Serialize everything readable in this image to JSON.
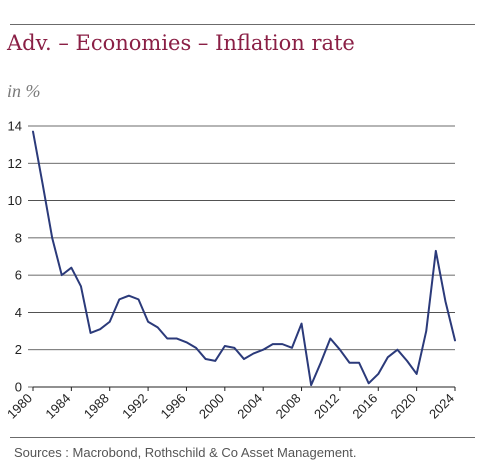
{
  "header": {
    "title": "Adv. – Economies – Inflation rate",
    "subtitle": "in %"
  },
  "footer": {
    "source": "Sources : Macrobond, Rothschild & Co Asset Management."
  },
  "colors": {
    "title": "#8a1f45",
    "line": "#2b3a7a",
    "grid": "#3a3a3a"
  },
  "chart_data": {
    "type": "line",
    "title": "Adv. – Economies – Inflation rate",
    "ylabel": "in %",
    "xlabel": "",
    "ylim": [
      0,
      14
    ],
    "xlim": [
      1980,
      2024
    ],
    "yticks": [
      0,
      2,
      4,
      6,
      8,
      10,
      12,
      14
    ],
    "xticks": [
      1980,
      1984,
      1988,
      1992,
      1996,
      2000,
      2004,
      2008,
      2012,
      2016,
      2020,
      2024
    ],
    "grid": "horizontal",
    "legend": "none",
    "series": [
      {
        "x": [
          1980,
          1981,
          1982,
          1983,
          1984,
          1985,
          1986,
          1987,
          1988,
          1989,
          1990,
          1991,
          1992,
          1993,
          1994,
          1995,
          1996,
          1997,
          1998,
          1999,
          2000,
          2001,
          2002,
          2003,
          2004,
          2005,
          2006,
          2007,
          2008,
          2009,
          2010,
          2011,
          2012,
          2013,
          2014,
          2015,
          2016,
          2017,
          2018,
          2019,
          2020,
          2021,
          2022,
          2023,
          2024
        ],
        "values": [
          13.7,
          10.9,
          8.0,
          6.0,
          6.4,
          5.4,
          2.9,
          3.1,
          3.5,
          4.7,
          4.9,
          4.7,
          3.5,
          3.2,
          2.6,
          2.6,
          2.4,
          2.1,
          1.5,
          1.4,
          2.2,
          2.1,
          1.5,
          1.8,
          2.0,
          2.3,
          2.3,
          2.1,
          3.4,
          0.1,
          1.3,
          2.6,
          2.0,
          1.3,
          1.3,
          0.2,
          0.7,
          1.6,
          2.0,
          1.4,
          0.7,
          3.0,
          7.3,
          4.6,
          2.5
        ]
      }
    ]
  }
}
